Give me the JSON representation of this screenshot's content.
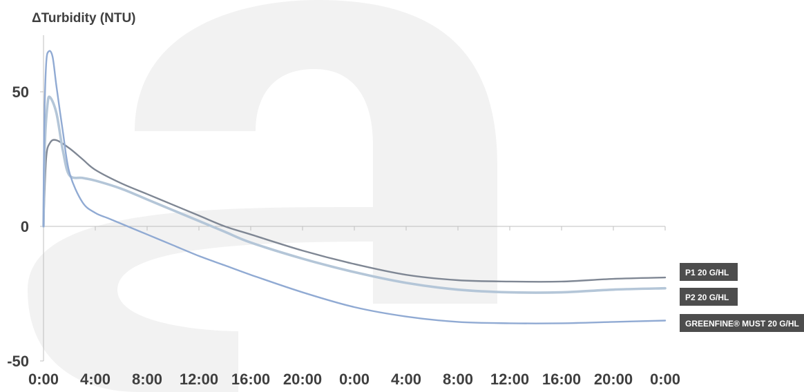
{
  "chart_data": {
    "type": "line",
    "ylabel": "ΔTurbidity (NTU)",
    "ylim": [
      -50,
      70
    ],
    "yticks": [
      50,
      0,
      -50
    ],
    "x_tick_labels": [
      "0:00",
      "4:00",
      "8:00",
      "12:00",
      "16:00",
      "20:00",
      "0:00",
      "4:00",
      "8:00",
      "12:00",
      "16:00",
      "20:00",
      "0:00"
    ],
    "x_unit": "hours",
    "xlim": [
      0,
      48
    ],
    "grid": false,
    "legend_placement": "right, at line ends",
    "background_watermark": "a",
    "colors": {
      "watermark": "#f2f2f2",
      "axis": "#bfbfbf",
      "legend_bg": "#4d4d4d",
      "label_text": "#3f3f3f"
    },
    "series": [
      {
        "name": "P1 20 G/HL",
        "color": "#7f8794",
        "x": [
          0,
          0.2,
          0.5,
          1,
          2,
          3,
          4,
          6,
          8,
          10,
          12,
          14,
          16,
          20,
          24,
          28,
          32,
          36,
          40,
          44,
          48
        ],
        "y": [
          0,
          25,
          31,
          32,
          29,
          25,
          21,
          16,
          12,
          8,
          4,
          0,
          -3,
          -9,
          -14,
          -18,
          -20,
          -20.5,
          -20.5,
          -19.5,
          -19
        ]
      },
      {
        "name": "P2 20 G/HL",
        "color": "#b4c6d8",
        "x": [
          0,
          0.1,
          0.3,
          0.5,
          1,
          1.5,
          2,
          3,
          4,
          6,
          8,
          10,
          12,
          14,
          16,
          20,
          24,
          28,
          32,
          36,
          40,
          44,
          48
        ],
        "y": [
          0,
          30,
          45,
          48,
          42,
          28,
          19,
          18,
          17,
          14,
          10,
          6,
          2,
          -2,
          -6,
          -12,
          -17,
          -21,
          -23.5,
          -24.5,
          -24.5,
          -23.5,
          -23
        ]
      },
      {
        "name": "GREENFINE® MUST 20 G/HL",
        "color": "#90aad3",
        "x": [
          0,
          0.05,
          0.2,
          0.4,
          0.7,
          1,
          1.5,
          2,
          3,
          4,
          5,
          6,
          8,
          10,
          12,
          14,
          16,
          20,
          24,
          28,
          32,
          36,
          40,
          44,
          48
        ],
        "y": [
          0,
          35,
          60,
          65,
          63,
          52,
          35,
          20,
          9,
          5,
          3,
          1,
          -3,
          -7,
          -11,
          -14.5,
          -18,
          -24.5,
          -30,
          -33.5,
          -35.5,
          -36,
          -36,
          -35.5,
          -35
        ]
      }
    ]
  }
}
